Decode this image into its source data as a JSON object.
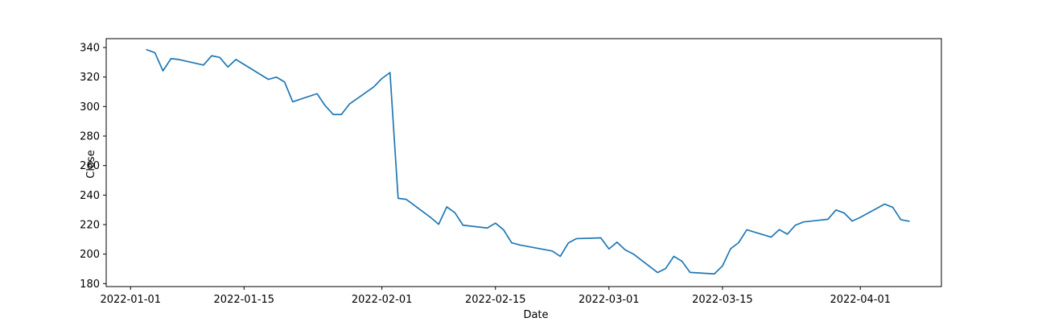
{
  "chart_data": {
    "type": "line",
    "title": "",
    "xlabel": "Date",
    "ylabel": "Close",
    "x_axis_type": "date",
    "xlim": [
      "2021-12-29",
      "2022-04-11"
    ],
    "ylim": [
      178,
      346
    ],
    "xticks": [
      "2022-01-01",
      "2022-01-15",
      "2022-02-01",
      "2022-02-15",
      "2022-03-01",
      "2022-03-15",
      "2022-04-01"
    ],
    "yticks": [
      180,
      200,
      220,
      240,
      260,
      280,
      300,
      320,
      340
    ],
    "grid": false,
    "legend": "none",
    "color": "#1f77b4",
    "series": [
      {
        "x": [
          "2022-01-03",
          "2022-01-04",
          "2022-01-05",
          "2022-01-06",
          "2022-01-07",
          "2022-01-10",
          "2022-01-11",
          "2022-01-12",
          "2022-01-13",
          "2022-01-14",
          "2022-01-18",
          "2022-01-19",
          "2022-01-20",
          "2022-01-21",
          "2022-01-24",
          "2022-01-25",
          "2022-01-26",
          "2022-01-27",
          "2022-01-28",
          "2022-01-31",
          "2022-02-01",
          "2022-02-02",
          "2022-02-03",
          "2022-02-04",
          "2022-02-07",
          "2022-02-08",
          "2022-02-09",
          "2022-02-10",
          "2022-02-11",
          "2022-02-14",
          "2022-02-15",
          "2022-02-16",
          "2022-02-17",
          "2022-02-18",
          "2022-02-22",
          "2022-02-23",
          "2022-02-24",
          "2022-02-25",
          "2022-02-28",
          "2022-03-01",
          "2022-03-02",
          "2022-03-03",
          "2022-03-04",
          "2022-03-07",
          "2022-03-08",
          "2022-03-09",
          "2022-03-10",
          "2022-03-11",
          "2022-03-14",
          "2022-03-15",
          "2022-03-16",
          "2022-03-17",
          "2022-03-18",
          "2022-03-21",
          "2022-03-22",
          "2022-03-23",
          "2022-03-24",
          "2022-03-25",
          "2022-03-28",
          "2022-03-29",
          "2022-03-30",
          "2022-03-31",
          "2022-04-01",
          "2022-04-04",
          "2022-04-05",
          "2022-04-06",
          "2022-04-07"
        ],
        "values": [
          338.5,
          336.5,
          324.2,
          332.5,
          331.8,
          328.1,
          334.4,
          333.3,
          326.8,
          331.9,
          318.4,
          319.9,
          316.6,
          303.2,
          308.7,
          300.6,
          294.6,
          294.6,
          301.7,
          313.3,
          319.0,
          323.0,
          237.8,
          237.1,
          224.9,
          220.2,
          232.0,
          228.1,
          219.6,
          217.7,
          221.0,
          216.5,
          207.7,
          206.2,
          202.1,
          198.5,
          207.6,
          210.5,
          211.0,
          203.5,
          208.1,
          202.9,
          200.1,
          187.5,
          190.3,
          198.5,
          195.2,
          187.6,
          186.6,
          192.0,
          203.6,
          207.8,
          216.5,
          211.5,
          216.6,
          213.5,
          219.6,
          221.8,
          223.6,
          229.9,
          227.9,
          222.4,
          224.9,
          233.9,
          231.7,
          223.3,
          222.3
        ]
      }
    ]
  }
}
